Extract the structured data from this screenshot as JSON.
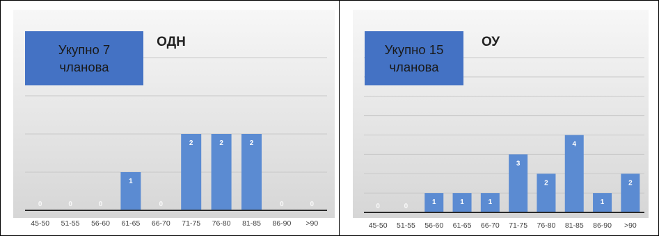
{
  "chart_data": [
    {
      "type": "bar",
      "title": "ОДН",
      "annotation": [
        "Укупно 7",
        "чланова"
      ],
      "categories": [
        "45-50",
        "51-55",
        "56-60",
        "61-65",
        "66-70",
        "71-75",
        "76-80",
        "81-85",
        "86-90",
        ">90"
      ],
      "values": [
        0,
        0,
        0,
        1,
        0,
        2,
        2,
        2,
        0,
        0
      ],
      "ylim": [
        0,
        4
      ],
      "grid": true,
      "legend": "none",
      "color": "#5b8bd2"
    },
    {
      "type": "bar",
      "title": "ОУ",
      "annotation": [
        "Укупно 15",
        "чланова"
      ],
      "categories": [
        "45-50",
        "51-55",
        "56-60",
        "61-65",
        "66-70",
        "71-75",
        "76-80",
        "81-85",
        "86-90",
        ">90"
      ],
      "values": [
        0,
        0,
        1,
        1,
        1,
        3,
        2,
        4,
        1,
        2
      ],
      "ylim": [
        0,
        8
      ],
      "grid": true,
      "legend": "none",
      "color": "#5b8bd2"
    }
  ],
  "colors": {
    "panel_top": "#f7f7f7",
    "panel_bottom": "#d6d6d6",
    "bar": "#5b8bd2",
    "annotation_box": "#4472c4"
  }
}
